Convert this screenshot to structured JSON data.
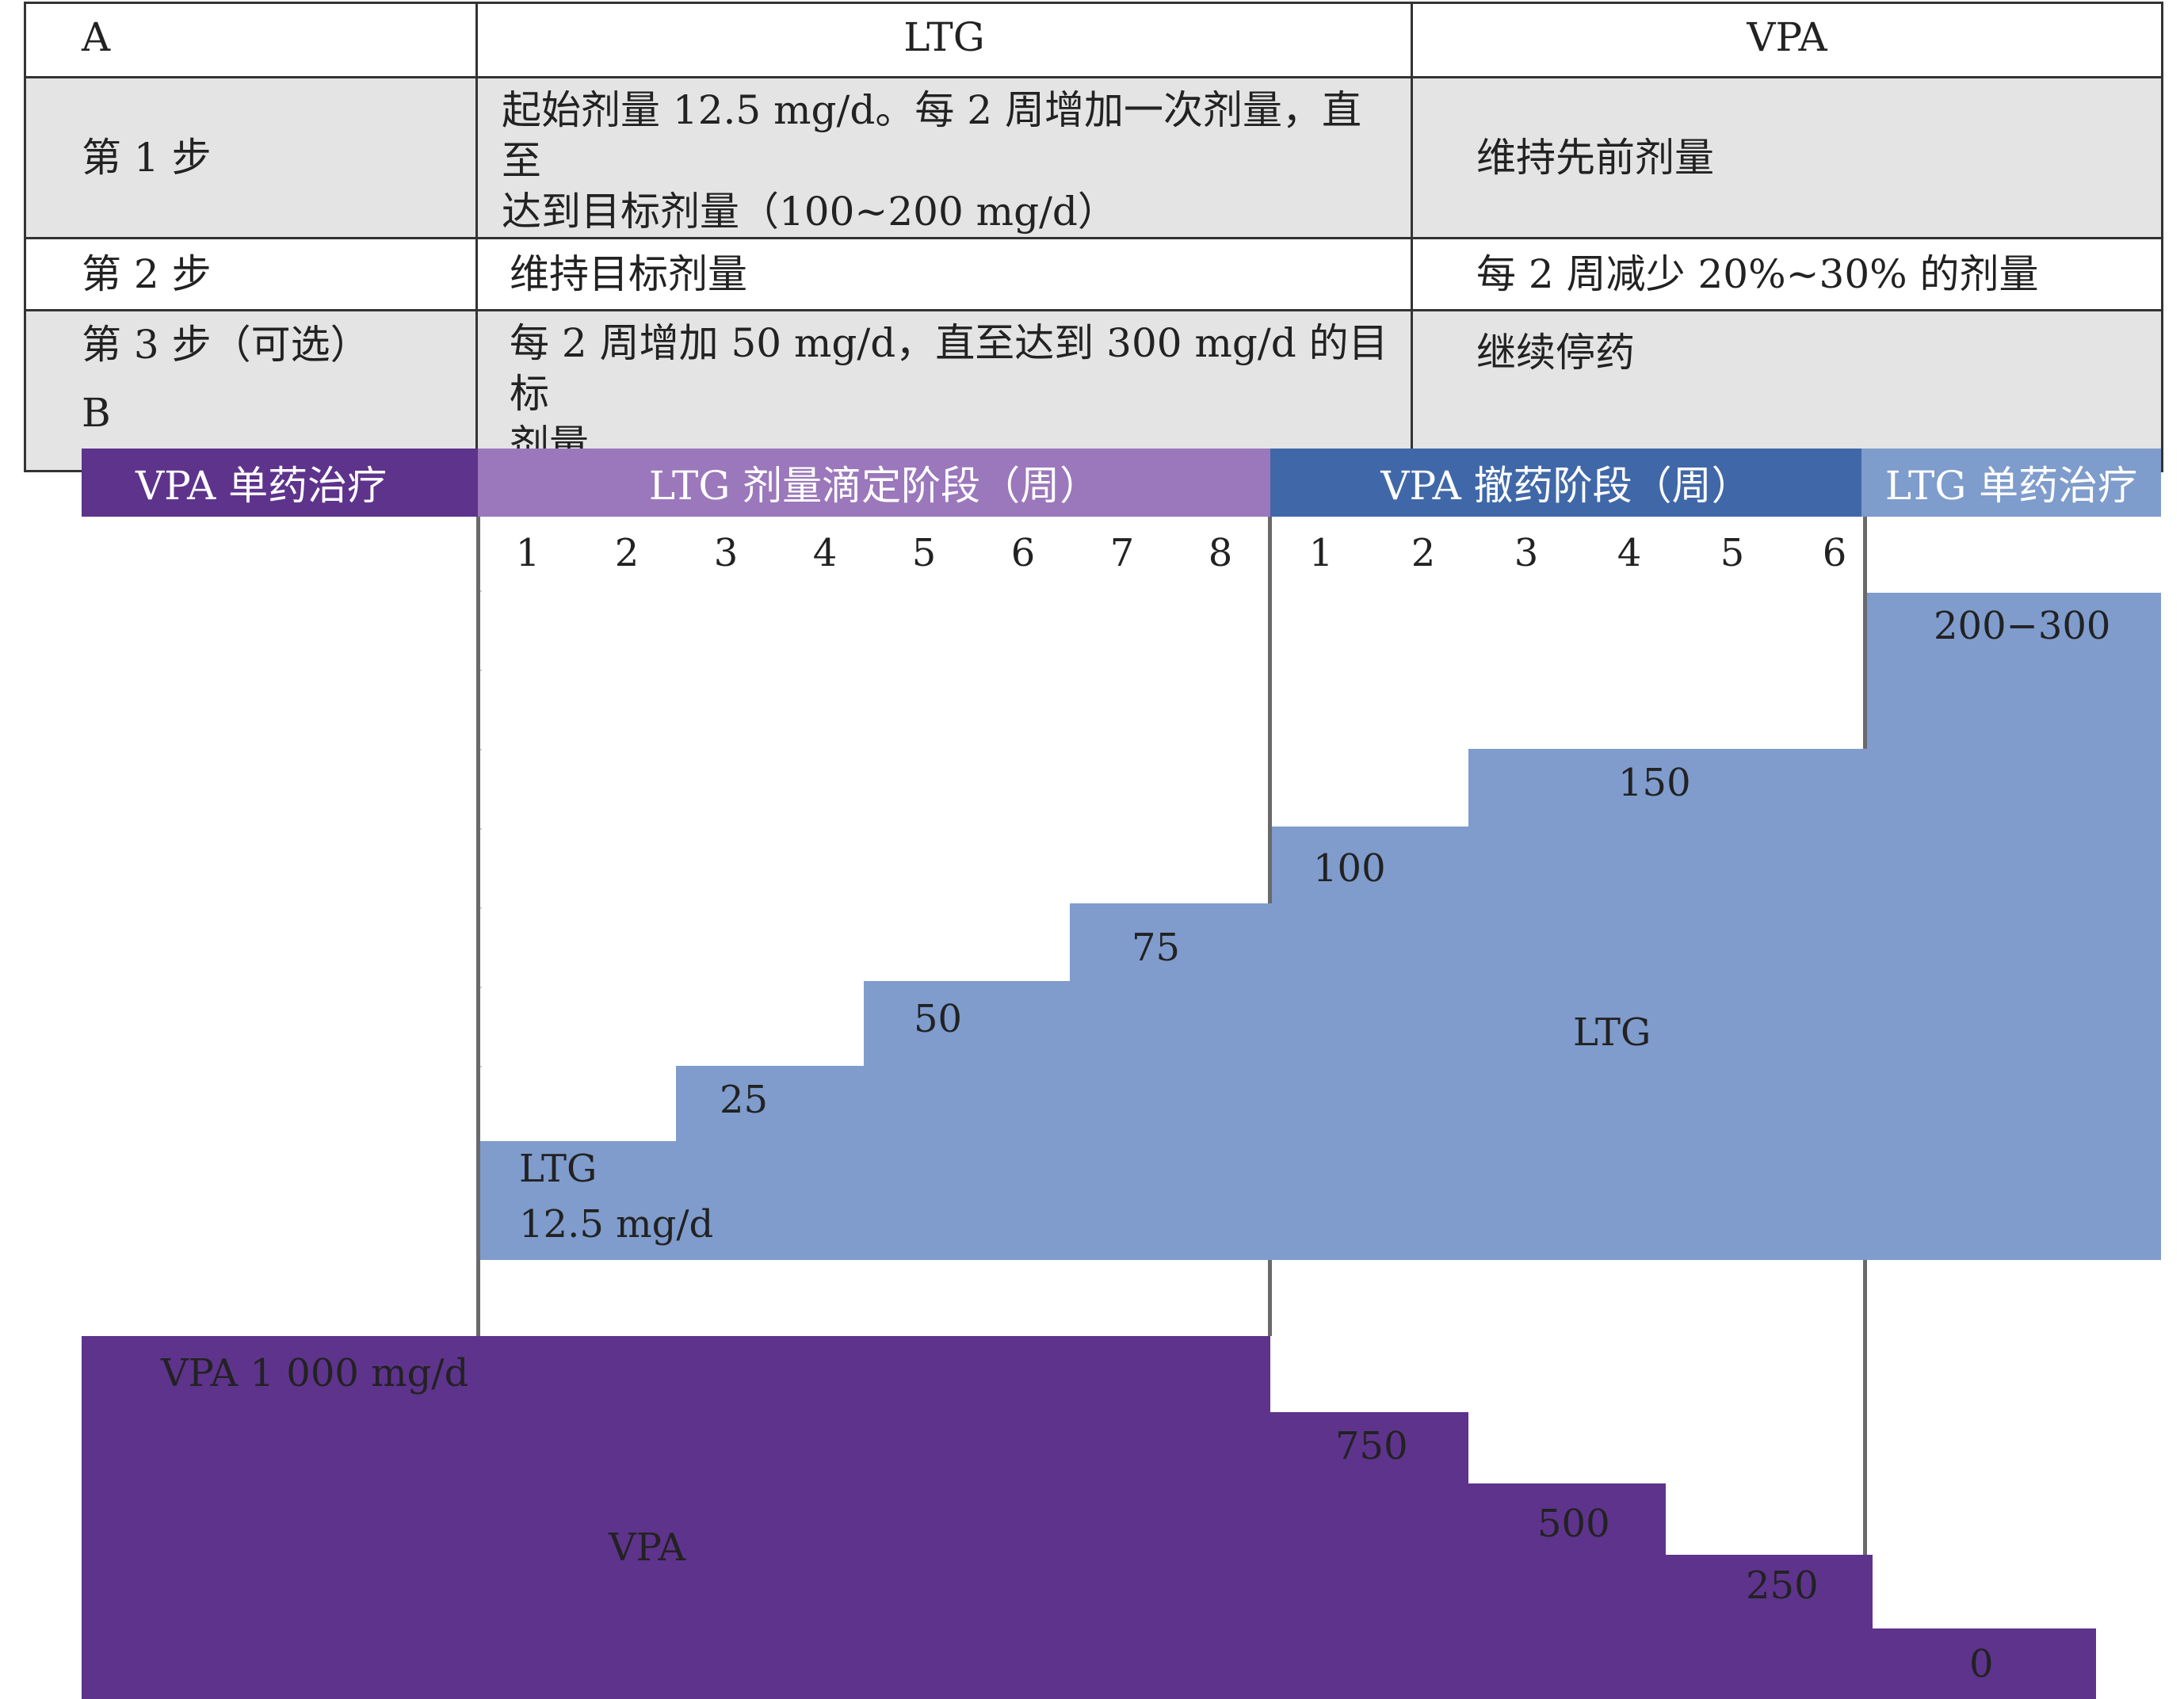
{
  "panel_a": {
    "label": "A",
    "header": {
      "col2": "LTG",
      "col3": "VPA"
    },
    "rows": [
      {
        "step": "第 1 步",
        "ltg_line1": "起始剂量 12.5 mg/d。每 2 周增加一次剂量，直至",
        "ltg_line2": "达到目标剂量（100~200 mg/d）",
        "vpa": "维持先前剂量"
      },
      {
        "step": "第 2 步",
        "ltg_line1": "维持目标剂量",
        "ltg_line2": "",
        "vpa": "每 2 周减少 20%~30% 的剂量"
      },
      {
        "step": "第 3 步（可选）",
        "ltg_line1": "每 2 周增加 50 mg/d，直至达到 300 mg/d 的目标",
        "ltg_line2": "剂量",
        "vpa": "继续停药"
      }
    ]
  },
  "panel_b": {
    "label": "B",
    "phases": {
      "vpa_mono": "VPA 单药治疗",
      "ltg_titration": "LTG 剂量滴定阶段（周）",
      "vpa_withdrawal": "VPA 撤药阶段（周）",
      "ltg_mono": "LTG 单药治疗"
    },
    "titration_weeks": [
      "1",
      "2",
      "3",
      "4",
      "5",
      "6",
      "7",
      "8"
    ],
    "withdrawal_weeks": [
      "1",
      "2",
      "3",
      "4",
      "5",
      "6"
    ],
    "ltg": {
      "name": "LTG",
      "start_label_line1": "LTG",
      "start_label_line2": "12.5 mg/d",
      "doses": [
        "25",
        "50",
        "75",
        "100",
        "150",
        "200−300"
      ]
    },
    "vpa": {
      "name": "VPA",
      "start_label": "VPA 1 000 mg/d",
      "doses": [
        "750",
        "500",
        "250",
        "0"
      ]
    },
    "colors": {
      "vpa_dark": "#5e338c",
      "ltg_phase": "#9b77bb",
      "withdraw_phase": "#4068a8",
      "ltg_mono": "#7e9ccc",
      "ltg_area": "#7f9ccd"
    }
  }
}
